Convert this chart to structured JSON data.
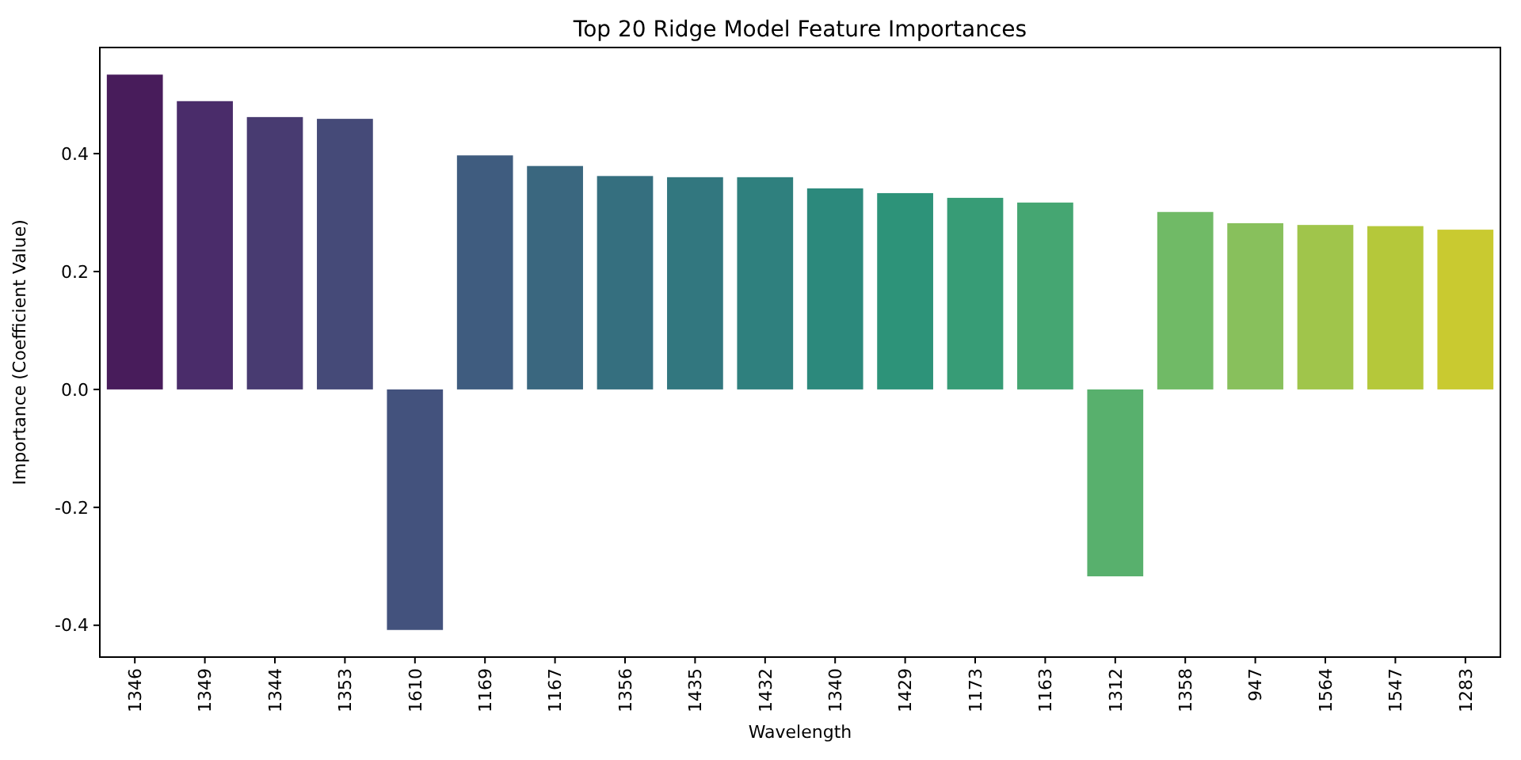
{
  "chart_data": {
    "type": "bar",
    "title": "Top 20 Ridge Model Feature Importances",
    "xlabel": "Wavelength",
    "ylabel": "Importance (Coefficient Value)",
    "categories": [
      "1346",
      "1349",
      "1344",
      "1353",
      "1610",
      "1169",
      "1167",
      "1356",
      "1435",
      "1432",
      "1340",
      "1429",
      "1173",
      "1163",
      "1312",
      "1358",
      "947",
      "1564",
      "1547",
      "1283"
    ],
    "values": [
      0.534,
      0.489,
      0.462,
      0.459,
      -0.408,
      0.397,
      0.379,
      0.362,
      0.36,
      0.36,
      0.341,
      0.333,
      0.325,
      0.317,
      -0.317,
      0.301,
      0.282,
      0.279,
      0.277,
      0.271
    ],
    "colors": [
      "#481c5b",
      "#4a2c6a",
      "#483b71",
      "#454a78",
      "#43527d",
      "#3f5c7f",
      "#3a677f",
      "#356f7f",
      "#32777f",
      "#2f807e",
      "#2c897c",
      "#2d9379",
      "#379c76",
      "#45a672",
      "#58b06d",
      "#70ba66",
      "#88c05c",
      "#a0c54b",
      "#b5c83a",
      "#c9ca30"
    ],
    "ylim": [
      -0.454,
      0.58
    ],
    "yticks": [
      -0.4,
      -0.2,
      {
        "value": 0,
        "label": "0.0"
      },
      0.2,
      0.4
    ]
  }
}
